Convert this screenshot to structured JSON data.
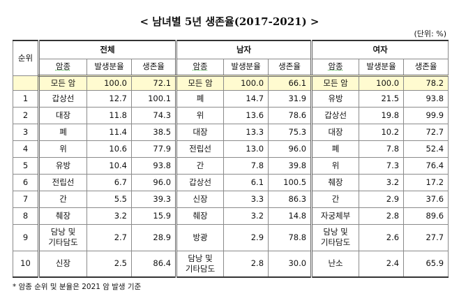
{
  "title": "< 남녀별 5년 생존율(2017-2021) >",
  "unit": "(단위: %)",
  "table": {
    "rank_header": "순위",
    "groups": [
      "전체",
      "남자",
      "여자"
    ],
    "columns": [
      "암종",
      "발생분율",
      "생존율"
    ],
    "total_row": [
      [
        "모든 암",
        "100.0",
        "72.1"
      ],
      [
        "모든 암",
        "100.0",
        "66.1"
      ],
      [
        "모든 암",
        "100.0",
        "78.2"
      ]
    ],
    "rows": [
      {
        "rank": "1",
        "cells": [
          [
            "갑상선",
            "12.7",
            "100.1"
          ],
          [
            "폐",
            "14.7",
            "31.9"
          ],
          [
            "유방",
            "21.5",
            "93.8"
          ]
        ]
      },
      {
        "rank": "2",
        "cells": [
          [
            "대장",
            "11.8",
            "74.3"
          ],
          [
            "위",
            "13.6",
            "78.6"
          ],
          [
            "갑상선",
            "19.8",
            "99.9"
          ]
        ]
      },
      {
        "rank": "3",
        "cells": [
          [
            "폐",
            "11.4",
            "38.5"
          ],
          [
            "대장",
            "13.3",
            "75.3"
          ],
          [
            "대장",
            "10.2",
            "72.7"
          ]
        ]
      },
      {
        "rank": "4",
        "cells": [
          [
            "위",
            "10.6",
            "77.9"
          ],
          [
            "전립선",
            "13.0",
            "96.0"
          ],
          [
            "폐",
            "7.8",
            "52.4"
          ]
        ]
      },
      {
        "rank": "5",
        "cells": [
          [
            "유방",
            "10.4",
            "93.8"
          ],
          [
            "간",
            "7.8",
            "39.8"
          ],
          [
            "위",
            "7.3",
            "76.4"
          ]
        ]
      },
      {
        "rank": "6",
        "cells": [
          [
            "전립선",
            "6.7",
            "96.0"
          ],
          [
            "갑상선",
            "6.1",
            "100.5"
          ],
          [
            "췌장",
            "3.2",
            "17.2"
          ]
        ]
      },
      {
        "rank": "7",
        "cells": [
          [
            "간",
            "5.5",
            "39.3"
          ],
          [
            "신장",
            "3.3",
            "86.3"
          ],
          [
            "간",
            "2.9",
            "37.6"
          ]
        ]
      },
      {
        "rank": "8",
        "cells": [
          [
            "췌장",
            "3.2",
            "15.9"
          ],
          [
            "췌장",
            "3.2",
            "14.8"
          ],
          [
            "자궁체부",
            "2.8",
            "89.6"
          ]
        ]
      },
      {
        "rank": "9",
        "cells": [
          [
            "담낭 및\n기타담도",
            "2.7",
            "28.9"
          ],
          [
            "방광",
            "2.9",
            "78.8"
          ],
          [
            "담낭 및\n기타담도",
            "2.6",
            "27.7"
          ]
        ]
      },
      {
        "rank": "10",
        "cells": [
          [
            "신장",
            "2.5",
            "86.4"
          ],
          [
            "담낭 및\n기타담도",
            "2.8",
            "30.0"
          ],
          [
            "난소",
            "2.4",
            "65.9"
          ]
        ]
      }
    ]
  },
  "footnote": "* 암종 순위 및 분율은 2021 암 발생 기준"
}
